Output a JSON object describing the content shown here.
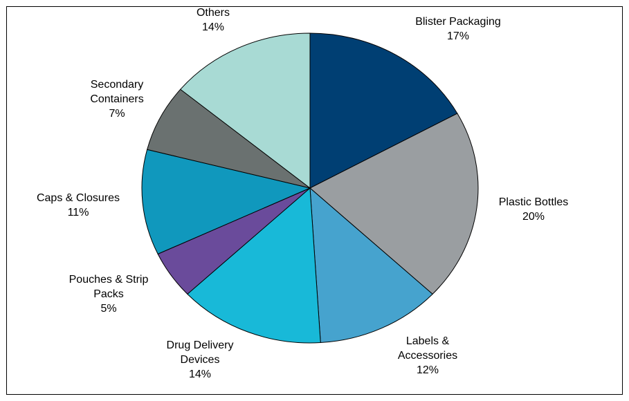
{
  "chart_data": {
    "type": "pie",
    "title": "",
    "legend": "none",
    "start": "12 o'clock, clockwise",
    "slices": [
      {
        "name_lines": [
          "Blister Packaging"
        ],
        "value": 17,
        "value_label": "17%",
        "color": "#003f73"
      },
      {
        "name_lines": [
          "Plastic Bottles"
        ],
        "value": 20,
        "value_label": "20%",
        "color": "#9a9ea1"
      },
      {
        "name_lines": [
          "Labels &",
          "Accessories"
        ],
        "value": 12,
        "value_label": "12%",
        "color": "#46a3ce"
      },
      {
        "name_lines": [
          "Drug Delivery",
          "Devices"
        ],
        "value": 14,
        "value_label": "14%",
        "color": "#18b9d8"
      },
      {
        "name_lines": [
          "Pouches & Strip",
          "Packs"
        ],
        "value": 5,
        "value_label": "5%",
        "color": "#6a4b9b"
      },
      {
        "name_lines": [
          "Caps & Closures"
        ],
        "value": 11,
        "value_label": "11%",
        "color": "#1098bd"
      },
      {
        "name_lines": [
          "Secondary",
          "Containers"
        ],
        "value": 7,
        "value_label": "7%",
        "color": "#6a7170"
      },
      {
        "name_lines": [
          "Others"
        ],
        "value": 14,
        "value_label": "14%",
        "color": "#a8dad4"
      }
    ]
  }
}
